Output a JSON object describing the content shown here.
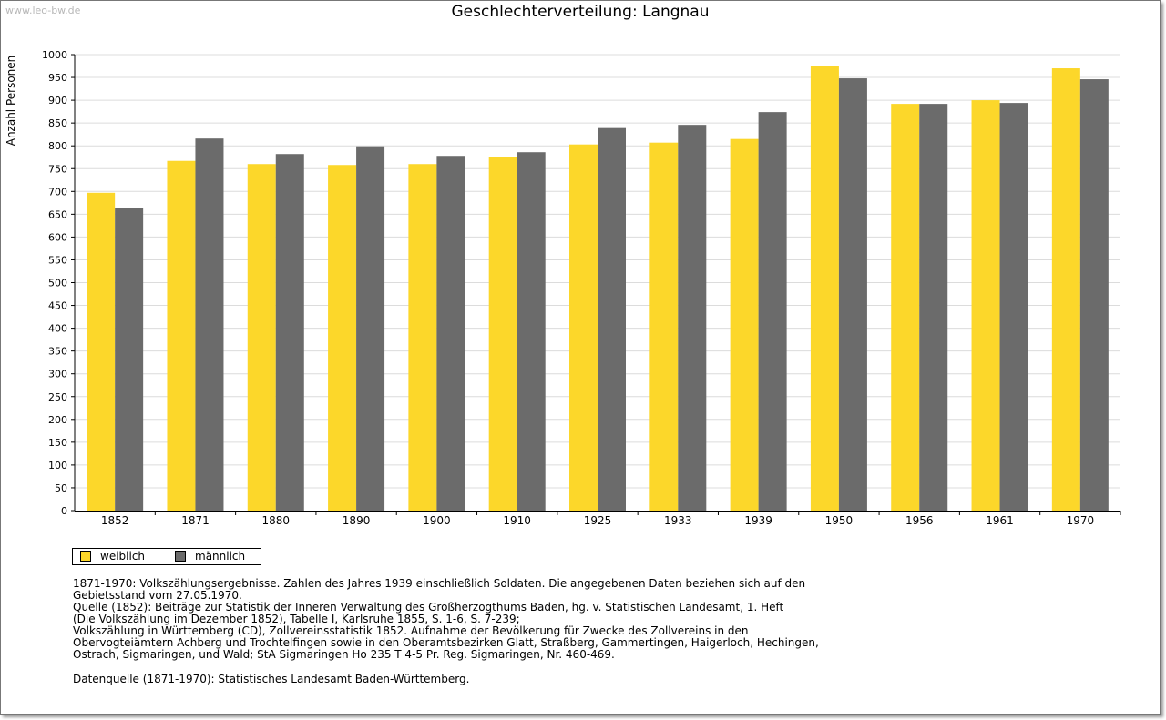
{
  "watermark": "www.leo-bw.de",
  "chart_data": {
    "type": "bar",
    "title": "Geschlechterverteilung: Langnau",
    "xlabel": "",
    "ylabel": "Anzahl Personen",
    "ylim": [
      0,
      1000
    ],
    "ytick_step": 50,
    "grid": true,
    "legend_position": "bottom-left",
    "categories": [
      "1852",
      "1871",
      "1880",
      "1890",
      "1900",
      "1910",
      "1925",
      "1933",
      "1939",
      "1950",
      "1956",
      "1961",
      "1970"
    ],
    "series": [
      {
        "name": "weiblich",
        "color": "#fcd72a",
        "values": [
          697,
          767,
          760,
          758,
          760,
          776,
          803,
          807,
          815,
          976,
          892,
          900,
          970
        ]
      },
      {
        "name": "männlich",
        "color": "#6b6b6b",
        "values": [
          664,
          816,
          782,
          799,
          778,
          786,
          839,
          846,
          874,
          948,
          892,
          894,
          946
        ]
      }
    ]
  },
  "notes": {
    "lines": [
      "1871-1970: Volkszählungsergebnisse. Zahlen des Jahres 1939 einschließlich Soldaten. Die angegebenen Daten beziehen sich auf den",
      "Gebietsstand vom 27.05.1970.",
      "Quelle (1852): Beiträge zur Statistik der Inneren Verwaltung des Großherzogthums Baden, hg. v. Statistischen Landesamt, 1. Heft",
      "(Die Volkszählung im Dezember 1852), Tabelle I, Karlsruhe 1855, S. 1-6, S. 7-239;",
      "Volkszählung in Württemberg (CD), Zollvereinsstatistik 1852. Aufnahme der Bevölkerung für Zwecke des Zollvereins in den",
      "Obervogteiämtern Achberg und Trochtelfingen sowie in den Oberamtsbezirken Glatt, Straßberg, Gammertingen, Haigerloch, Hechingen,",
      "Ostrach, Sigmaringen, und Wald; StA Sigmaringen Ho 235 T 4-5 Pr. Reg. Sigmaringen, Nr. 460-469."
    ],
    "datasource": "Datenquelle (1871-1970): Statistisches Landesamt Baden-Württemberg."
  }
}
